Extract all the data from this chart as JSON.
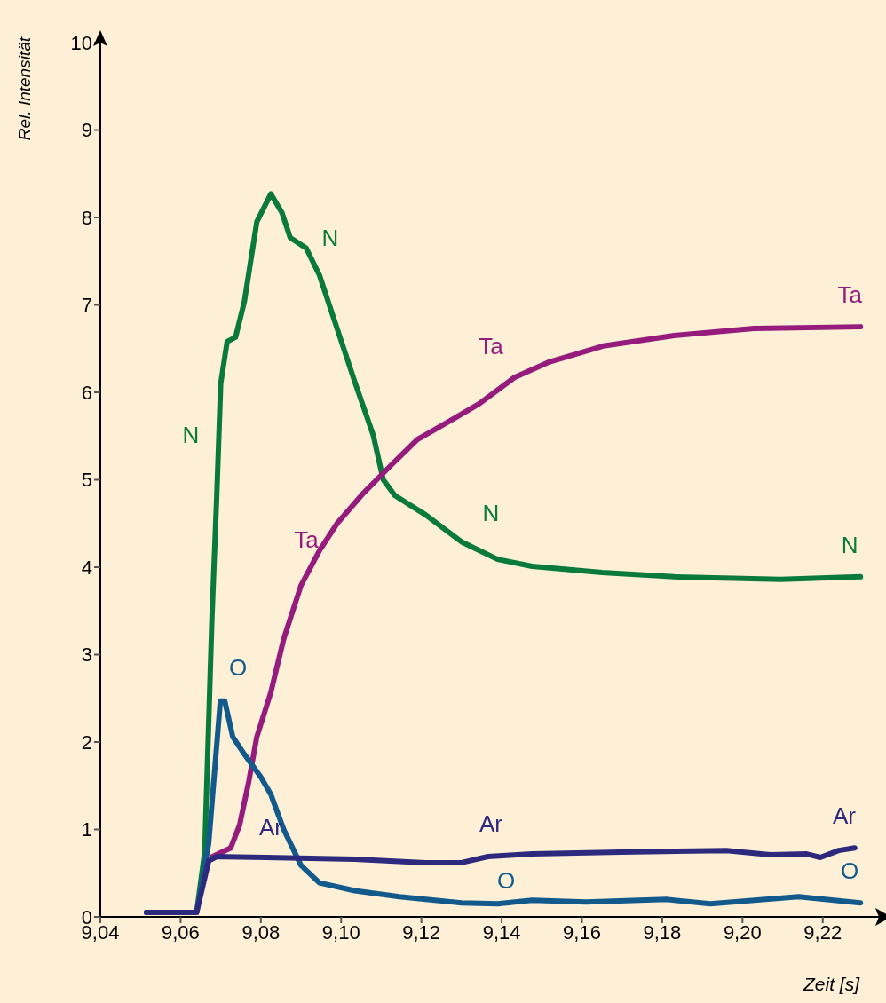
{
  "chart_data": {
    "type": "line",
    "xlabel": "Zeit [s]",
    "ylabel": "Rel. Intensität",
    "xlim": [
      9.04,
      9.234
    ],
    "ylim": [
      0,
      10
    ],
    "xticks": [
      {
        "value": 9.04,
        "label": "9,04"
      },
      {
        "value": 9.06,
        "label": "9,06"
      },
      {
        "value": 9.08,
        "label": "9,08"
      },
      {
        "value": 9.1,
        "label": "9,10"
      },
      {
        "value": 9.12,
        "label": "9,12"
      },
      {
        "value": 9.14,
        "label": "9,14"
      },
      {
        "value": 9.16,
        "label": "9,16"
      },
      {
        "value": 9.18,
        "label": "9,18"
      },
      {
        "value": 9.2,
        "label": "9,20"
      },
      {
        "value": 9.22,
        "label": "9,22"
      }
    ],
    "yticks": [
      0,
      1,
      2,
      3,
      4,
      5,
      6,
      7,
      8,
      9,
      10
    ],
    "grid": false,
    "legend": false,
    "marker": "none",
    "line_style": "solid",
    "series": [
      {
        "name": "N",
        "color": "#0a7a3c",
        "x": [
          9.0515,
          9.064,
          9.066,
          9.0678,
          9.069,
          9.07,
          9.0716,
          9.0737,
          9.0759,
          9.079,
          9.0825,
          9.0853,
          9.0873,
          9.0913,
          9.0946,
          9.099,
          9.1034,
          9.108,
          9.1105,
          9.1134,
          9.121,
          9.13,
          9.139,
          9.1476,
          9.165,
          9.183,
          9.2095,
          9.2294
        ],
        "values": [
          0.05,
          0.05,
          0.74,
          3.4,
          4.8,
          6.1,
          6.58,
          6.63,
          7.04,
          7.95,
          8.27,
          8.05,
          7.77,
          7.65,
          7.34,
          6.73,
          6.12,
          5.51,
          5.0,
          4.82,
          4.6,
          4.29,
          4.09,
          4.01,
          3.94,
          3.89,
          3.86,
          3.89
        ]
      },
      {
        "name": "Ta",
        "color": "#951c7c",
        "x": [
          9.068,
          9.0725,
          9.0747,
          9.077,
          9.079,
          9.0825,
          9.0857,
          9.09,
          9.0946,
          9.099,
          9.1056,
          9.1123,
          9.119,
          9.1255,
          9.1344,
          9.1432,
          9.152,
          9.1653,
          9.183,
          9.2029,
          9.2294
        ],
        "values": [
          0.69,
          0.79,
          1.05,
          1.55,
          2.06,
          2.57,
          3.18,
          3.79,
          4.19,
          4.5,
          4.85,
          5.16,
          5.46,
          5.63,
          5.87,
          6.17,
          6.35,
          6.53,
          6.65,
          6.73,
          6.75
        ]
      },
      {
        "name": "O",
        "color": "#135a8c",
        "x": [
          9.0515,
          9.064,
          9.067,
          9.0699,
          9.071,
          9.073,
          9.0759,
          9.08,
          9.0825,
          9.0857,
          9.09,
          9.0946,
          9.1034,
          9.1145,
          9.13,
          9.139,
          9.1476,
          9.161,
          9.181,
          9.192,
          9.203,
          9.214,
          9.2294
        ],
        "values": [
          0.05,
          0.05,
          0.84,
          2.47,
          2.47,
          2.06,
          1.86,
          1.6,
          1.4,
          1.0,
          0.59,
          0.39,
          0.3,
          0.23,
          0.16,
          0.15,
          0.19,
          0.17,
          0.2,
          0.15,
          0.19,
          0.23,
          0.16
        ]
      },
      {
        "name": "Ar",
        "color": "#2d2a7e",
        "x": [
          9.0515,
          9.064,
          9.067,
          9.069,
          9.0813,
          9.1034,
          9.121,
          9.13,
          9.1366,
          9.1476,
          9.1697,
          9.196,
          9.207,
          9.216,
          9.2194,
          9.224,
          9.228
        ],
        "values": [
          0.05,
          0.05,
          0.64,
          0.69,
          0.68,
          0.66,
          0.62,
          0.62,
          0.69,
          0.72,
          0.74,
          0.76,
          0.71,
          0.72,
          0.68,
          0.76,
          0.79
        ]
      }
    ],
    "annotations": [
      "N",
      "N",
      "N",
      "Ta",
      "Ta",
      "O",
      "O",
      "Ar",
      "Ar"
    ]
  }
}
